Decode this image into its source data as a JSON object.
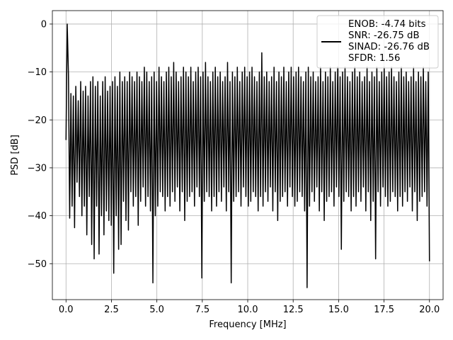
{
  "chart_data": {
    "type": "line",
    "xlabel": "Frequency [MHz]",
    "ylabel": "PSD [dB]",
    "xlim": [
      -0.75,
      20.75
    ],
    "ylim": [
      -57.5,
      2.8
    ],
    "xticks": [
      0.0,
      2.5,
      5.0,
      7.5,
      10.0,
      12.5,
      15.0,
      17.5,
      20.0
    ],
    "xtick_labels": [
      "0.0",
      "2.5",
      "5.0",
      "7.5",
      "10.0",
      "12.5",
      "15.0",
      "17.5",
      "20.0"
    ],
    "yticks": [
      0,
      -10,
      -20,
      -30,
      -40,
      -50
    ],
    "ytick_labels": [
      "0",
      "−10",
      "−20",
      "−30",
      "−40",
      "−50"
    ],
    "grid": true,
    "legend_position": "top-right",
    "line_color": "#000000",
    "series": [
      {
        "name": "ENOB: -4.74 bits\nSNR: -26.75 dB\nSINAD: -26.76 dB\nSFDR: 1.56",
        "name_lines": [
          "ENOB: -4.74 bits",
          "SNR: -26.75 dB",
          "SINAD: -26.76 dB",
          "SFDR: 1.56"
        ],
        "x_start": 0.0,
        "x_end": 20.0,
        "values": [
          -24.2,
          0,
          -10.5,
          -40.5,
          -14.5,
          -38,
          -15,
          -42.5,
          -13,
          -33,
          -16,
          -36,
          -12,
          -40,
          -14,
          -38,
          -13,
          -44,
          -15,
          -36,
          -12,
          -46,
          -11,
          -49,
          -13,
          -38,
          -12,
          -48,
          -15,
          -40,
          -12,
          -44,
          -11,
          -39,
          -14,
          -41,
          -13,
          -42,
          -12,
          -52,
          -11,
          -40,
          -13,
          -47,
          -10,
          -46,
          -12,
          -37,
          -11,
          -41,
          -12,
          -43,
          -10,
          -35,
          -11,
          -38,
          -12,
          -36,
          -10,
          -42,
          -11,
          -37,
          -12,
          -34,
          -9,
          -38,
          -10,
          -36,
          -12,
          -39,
          -11,
          -54,
          -10,
          -40,
          -12,
          -38,
          -9,
          -35,
          -11,
          -36,
          -12,
          -39,
          -10,
          -36,
          -9,
          -38,
          -11,
          -35,
          -8,
          -37,
          -10,
          -34,
          -12,
          -39,
          -11,
          -35,
          -9,
          -41,
          -10,
          -37,
          -11,
          -36,
          -9,
          -35,
          -12,
          -38,
          -10,
          -34,
          -9,
          -36,
          -11,
          -53,
          -10,
          -37,
          -8,
          -35,
          -11,
          -36,
          -12,
          -39,
          -10,
          -36,
          -9,
          -38,
          -11,
          -35,
          -10,
          -37,
          -12,
          -34,
          -11,
          -39,
          -8,
          -35,
          -12,
          -54,
          -10,
          -37,
          -11,
          -36,
          -9,
          -35,
          -12,
          -38,
          -10,
          -34,
          -9,
          -36,
          -11,
          -38,
          -10,
          -37,
          -9,
          -35,
          -11,
          -36,
          -12,
          -39,
          -10,
          -36,
          -6,
          -38,
          -11,
          -35,
          -10,
          -37,
          -12,
          -34,
          -11,
          -39,
          -9,
          -35,
          -12,
          -41,
          -10,
          -37,
          -11,
          -36,
          -9,
          -35,
          -12,
          -38,
          -10,
          -34,
          -9,
          -36,
          -11,
          -38,
          -10,
          -37,
          -9,
          -35,
          -11,
          -36,
          -12,
          -39,
          -10,
          -55,
          -9,
          -38,
          -11,
          -35,
          -10,
          -37,
          -12,
          -34,
          -11,
          -39,
          -9,
          -35,
          -12,
          -41,
          -10,
          -37,
          -11,
          -36,
          -9,
          -35,
          -12,
          -38,
          -10,
          -34,
          -9,
          -36,
          -11,
          -47,
          -10,
          -37,
          -9,
          -35,
          -11,
          -36,
          -12,
          -39,
          -10,
          -36,
          -9,
          -38,
          -11,
          -35,
          -10,
          -37,
          -12,
          -34,
          -11,
          -39,
          -9,
          -35,
          -12,
          -41,
          -10,
          -37,
          -11,
          -49,
          -9,
          -35,
          -12,
          -38,
          -10,
          -34,
          -9,
          -36,
          -11,
          -38,
          -10,
          -37,
          -9,
          -35,
          -11,
          -36,
          -12,
          -39,
          -10,
          -36,
          -9,
          -38,
          -11,
          -35,
          -10,
          -37,
          -12,
          -34,
          -11,
          -39,
          -9,
          -35,
          -12,
          -41,
          -10,
          -37,
          -11,
          -36,
          -9,
          -35,
          -12,
          -38,
          -10,
          -49.5
        ]
      }
    ]
  }
}
